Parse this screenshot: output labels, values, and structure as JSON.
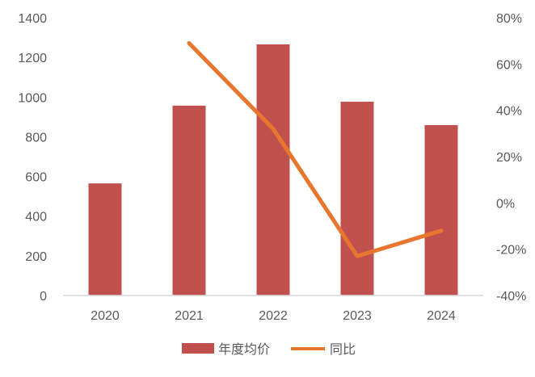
{
  "chart_data": {
    "type": "bar+line",
    "categories": [
      "2020",
      "2021",
      "2022",
      "2023",
      "2024"
    ],
    "series": [
      {
        "name": "年度均价",
        "type": "bar",
        "axis": "left",
        "color": "#c0504d",
        "values": [
          565,
          957,
          1266,
          977,
          859
        ]
      },
      {
        "name": "同比",
        "type": "line",
        "axis": "right",
        "color": "#e8762f",
        "values": [
          null,
          69,
          32,
          -23,
          -12
        ]
      }
    ],
    "left_axis": {
      "min": 0,
      "max": 1400,
      "ticks": [
        "0",
        "200",
        "400",
        "600",
        "800",
        "1000",
        "1200",
        "1400"
      ]
    },
    "right_axis": {
      "min": -40,
      "max": 80,
      "unit": "%",
      "ticks": [
        "-40%",
        "-20%",
        "0%",
        "20%",
        "40%",
        "60%",
        "80%"
      ]
    },
    "grid": false,
    "legend_position": "bottom"
  }
}
